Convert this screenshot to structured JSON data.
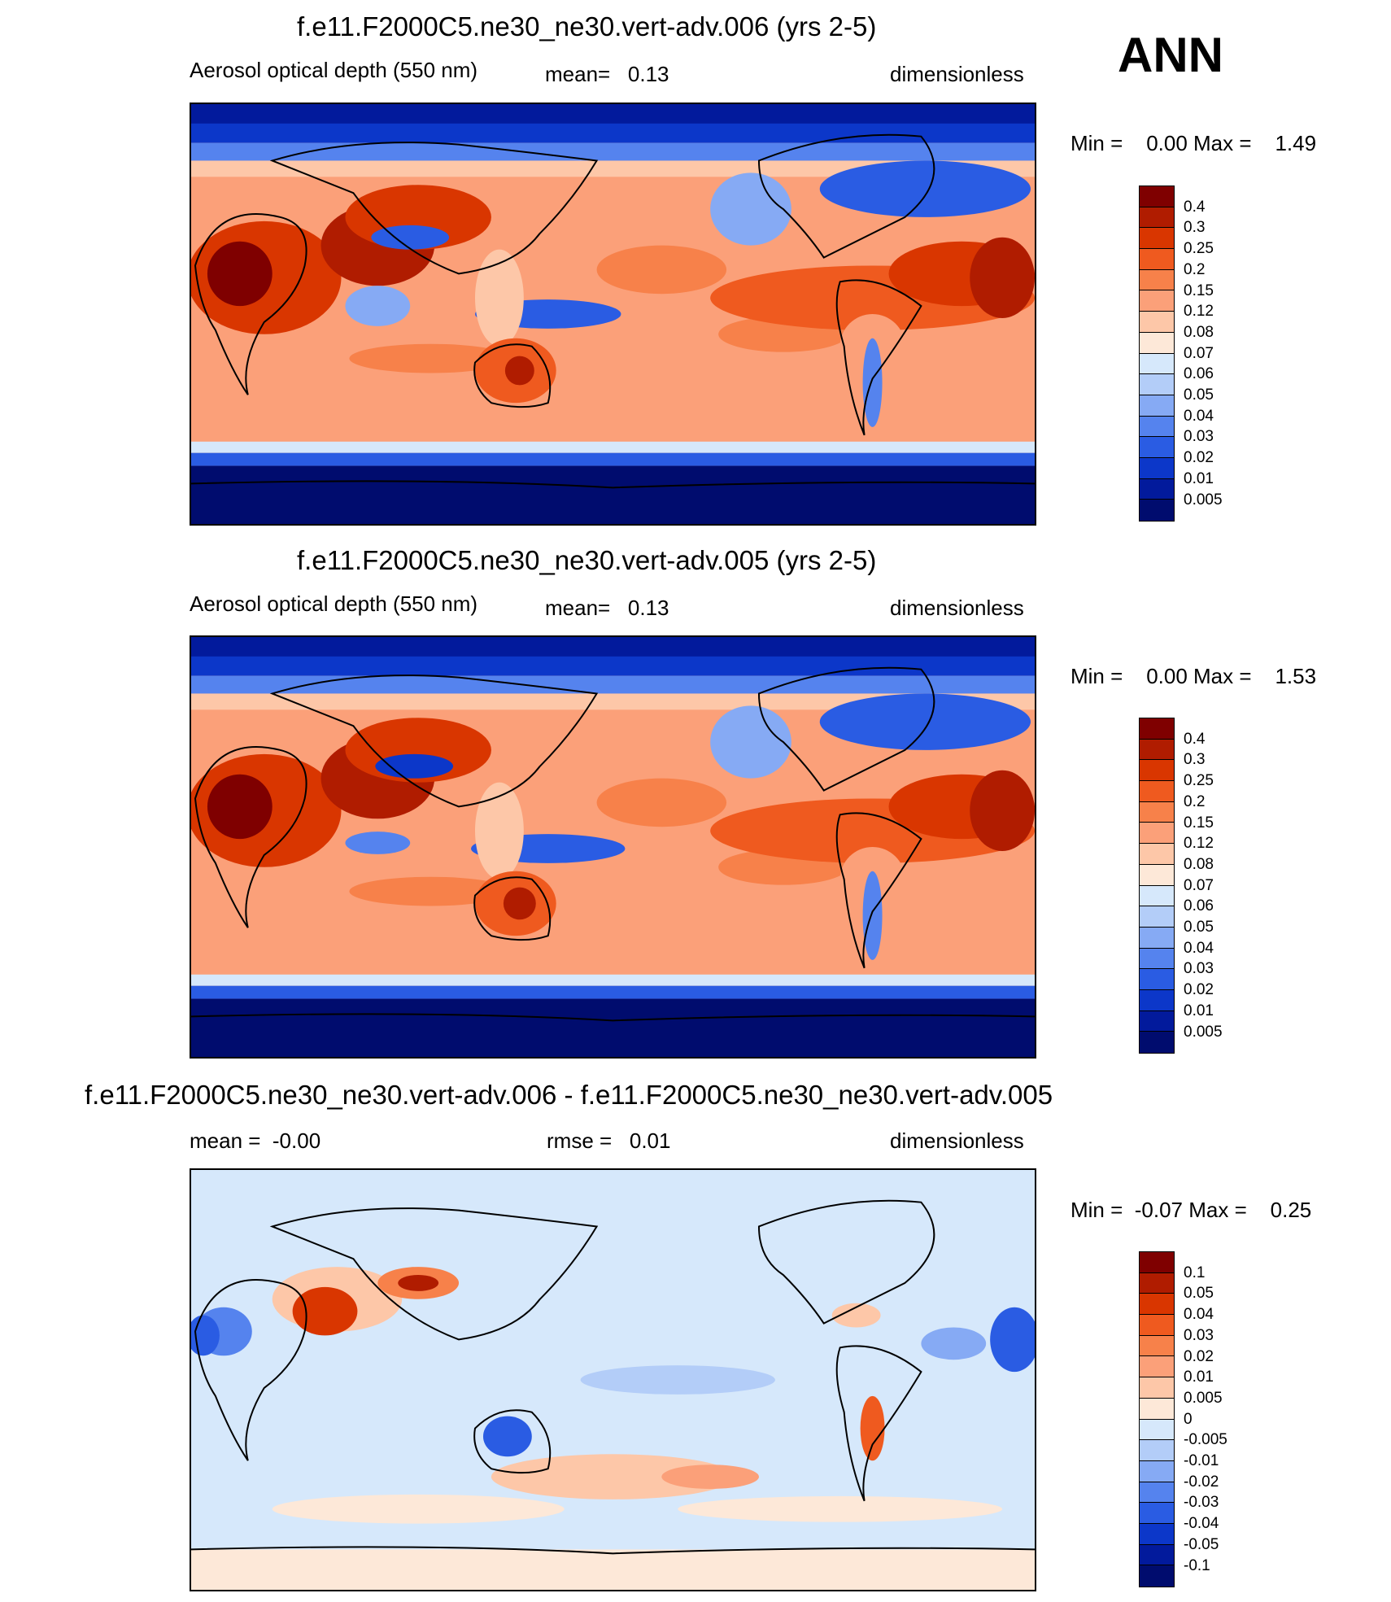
{
  "season": "ANN",
  "panels": [
    {
      "title": "f.e11.F2000C5.ne30_ne30.vert-adv.006 (yrs 2-5)",
      "left": "Aerosol optical depth (550 nm)",
      "middle": "mean=   0.13",
      "right": "dimensionless",
      "minmax": "Min =    0.00 Max =    1.49",
      "levels": [
        "0.4",
        "0.3",
        "0.25",
        "0.2",
        "0.15",
        "0.12",
        "0.08",
        "0.07",
        "0.06",
        "0.05",
        "0.04",
        "0.03",
        "0.02",
        "0.01",
        "0.005"
      ]
    },
    {
      "title": "f.e11.F2000C5.ne30_ne30.vert-adv.005 (yrs 2-5)",
      "left": "Aerosol optical depth (550 nm)",
      "middle": "mean=   0.13",
      "right": "dimensionless",
      "minmax": "Min =    0.00 Max =    1.53",
      "levels": [
        "0.4",
        "0.3",
        "0.25",
        "0.2",
        "0.15",
        "0.12",
        "0.08",
        "0.07",
        "0.06",
        "0.05",
        "0.04",
        "0.03",
        "0.02",
        "0.01",
        "0.005"
      ]
    },
    {
      "title": "f.e11.F2000C5.ne30_ne30.vert-adv.006 - f.e11.F2000C5.ne30_ne30.vert-adv.005",
      "left": "mean =  -0.00",
      "middle": "rmse =   0.01",
      "right": "dimensionless",
      "minmax": "Min =  -0.07 Max =    0.25",
      "levels": [
        "0.1",
        "0.05",
        "0.04",
        "0.03",
        "0.02",
        "0.01",
        "0.005",
        "0",
        "-0.005",
        "-0.01",
        "-0.02",
        "-0.03",
        "-0.04",
        "-0.05",
        "-0.1"
      ]
    }
  ],
  "colors": {
    "aod_scale": [
      "#7f0000",
      "#b01c00",
      "#d93600",
      "#ef5a1f",
      "#f7814a",
      "#fba079",
      "#fdc7a8",
      "#fde8d8",
      "#d6e8fb",
      "#b3cdf8",
      "#86aaf4",
      "#5583ee",
      "#2a5ce3",
      "#0c37c9",
      "#021a9c",
      "#000c6e"
    ],
    "diff_scale": [
      "#7f0000",
      "#b01c00",
      "#d93600",
      "#ef5a1f",
      "#f7814a",
      "#fba079",
      "#fdc7a8",
      "#fde8d8",
      "#d6e8fb",
      "#b3cdf8",
      "#86aaf4",
      "#5583ee",
      "#2a5ce3",
      "#0c37c9",
      "#021a9c",
      "#000c6e"
    ]
  }
}
